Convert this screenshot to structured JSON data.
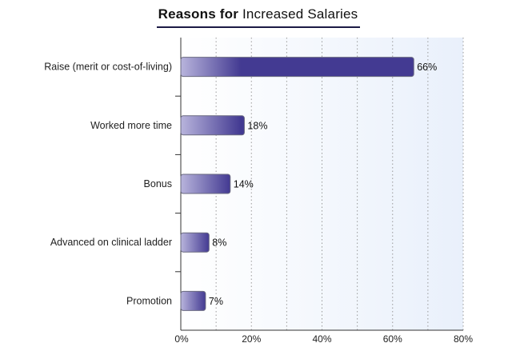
{
  "title_bold": "Reasons for",
  "title_rest": "Increased Salaries",
  "chart_data": {
    "type": "bar",
    "orientation": "horizontal",
    "title": "Reasons for Increased Salaries",
    "categories": [
      "Raise (merit or cost-of-living)",
      "Worked more time",
      "Bonus",
      "Advanced on clinical ladder",
      "Promotion"
    ],
    "values": [
      66,
      18,
      14,
      8,
      7
    ],
    "value_labels": [
      "66%",
      "18%",
      "14%",
      "8%",
      "7%"
    ],
    "xlim": [
      0,
      80
    ],
    "xticks": [
      0,
      20,
      40,
      60,
      80
    ],
    "xtick_labels": [
      "0%",
      "20%",
      "40%",
      "60%",
      "80%"
    ],
    "xlabel": "",
    "ylabel": "",
    "grid": "vertical dotted",
    "legend": "none",
    "colors": {
      "bar_dark": "#433a92",
      "bar_light": "#b8b4dc",
      "bar_stroke": "#6a6a80",
      "plot_bg_left": "#ffffff",
      "plot_bg_right": "#e9f0fb",
      "grid": "#9a9a9a",
      "axis": "#333333"
    }
  }
}
